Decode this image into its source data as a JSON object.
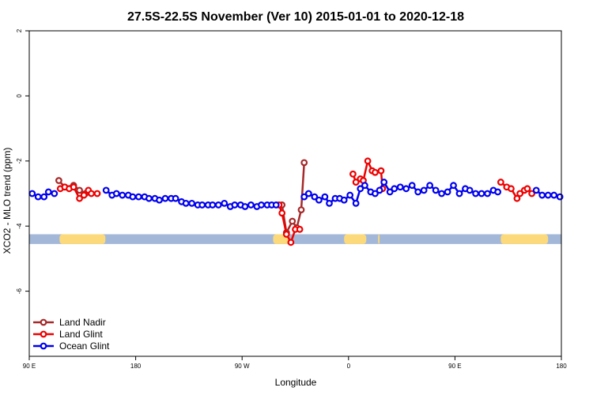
{
  "chart_data": {
    "type": "line",
    "title": "27.5S-22.5S November (Ver 10)   2015-01-01 to 2020-12-18",
    "xlabel": "Longitude",
    "ylabel": "XCO2 - MLO trend (ppm)",
    "xlim": [
      90,
      450
    ],
    "ylim": [
      -8,
      2
    ],
    "x_ticks": [
      90,
      162,
      234,
      306,
      378,
      450
    ],
    "x_tick_labels": [
      "90 E",
      "180",
      "90 W",
      "0",
      "90 E",
      "180"
    ],
    "y_ticks": [
      2,
      0,
      -2,
      -4,
      -6
    ],
    "y_tick_labels": [
      "2",
      "0",
      "-2",
      "-4",
      "-6"
    ],
    "grid": false,
    "legend_position": "bottom-left",
    "land_band": {
      "y_range": [
        -4.55,
        -4.25
      ],
      "ocean_color": "#a3b8d8",
      "land_color": "#fcd97a",
      "land_x_ranges": [
        [
          110.5,
          141.5
        ],
        [
          255,
          266
        ],
        [
          303,
          318
        ],
        [
          326,
          327
        ],
        [
          409,
          441
        ]
      ]
    },
    "series": [
      {
        "name": "Land Nadir",
        "color": "#a52a2a",
        "x": [
          110,
          114,
          120,
          124,
          128,
          261,
          264,
          268,
          271,
          274,
          276
        ],
        "y": [
          -2.6,
          -2.8,
          -2.75,
          -2.9,
          -3.0,
          -3.35,
          -4.2,
          -3.85,
          -4.05,
          -3.5,
          -2.05
        ]
      },
      {
        "name": "Land Glint",
        "color": "#ee0000",
        "x": [
          111,
          114,
          117,
          120,
          124,
          127,
          130,
          132,
          136,
          259,
          261,
          264,
          267,
          270,
          273,
          309,
          311,
          314,
          316,
          319,
          322,
          324,
          328,
          329,
          409,
          413,
          416,
          420,
          422,
          425,
          427,
          430
        ],
        "y": [
          -2.85,
          -2.8,
          -2.85,
          -2.8,
          -3.15,
          -3.05,
          -2.9,
          -3.0,
          -3.0,
          -3.35,
          -3.6,
          -4.25,
          -4.5,
          -4.1,
          -4.1,
          -2.4,
          -2.65,
          -2.55,
          -2.6,
          -2.0,
          -2.3,
          -2.35,
          -2.3,
          -2.85,
          -2.65,
          -2.8,
          -2.85,
          -3.15,
          -3.0,
          -2.9,
          -2.85,
          -3.0
        ]
      },
      {
        "name": "Ocean Glint",
        "color": "#0000ee",
        "x": [
          92,
          96,
          100,
          103,
          107,
          142,
          146,
          149,
          153,
          157,
          160,
          164,
          168,
          171,
          175,
          178,
          182,
          186,
          189,
          193,
          196,
          200,
          204,
          207,
          211,
          214,
          218,
          222,
          226,
          229,
          233,
          236,
          240,
          244,
          247,
          251,
          254,
          257,
          276,
          279,
          283,
          286,
          290,
          293,
          297,
          300,
          303,
          307,
          311,
          314,
          317,
          321,
          324,
          327,
          330,
          334,
          337,
          341,
          345,
          349,
          353,
          357,
          361,
          365,
          369,
          373,
          377,
          381,
          385,
          388,
          392,
          396,
          400,
          404,
          407,
          433,
          437,
          441,
          445,
          449
        ],
        "y": [
          -3.0,
          -3.1,
          -3.1,
          -2.95,
          -3.0,
          -2.9,
          -3.05,
          -3.0,
          -3.05,
          -3.05,
          -3.1,
          -3.1,
          -3.1,
          -3.15,
          -3.15,
          -3.2,
          -3.15,
          -3.15,
          -3.15,
          -3.25,
          -3.3,
          -3.3,
          -3.35,
          -3.35,
          -3.35,
          -3.35,
          -3.35,
          -3.3,
          -3.4,
          -3.35,
          -3.35,
          -3.4,
          -3.35,
          -3.4,
          -3.35,
          -3.35,
          -3.35,
          -3.35,
          -3.1,
          -3.0,
          -3.1,
          -3.2,
          -3.1,
          -3.3,
          -3.15,
          -3.15,
          -3.2,
          -3.05,
          -3.3,
          -2.85,
          -2.75,
          -2.95,
          -3.0,
          -2.9,
          -2.65,
          -2.95,
          -2.85,
          -2.8,
          -2.85,
          -2.75,
          -2.95,
          -2.9,
          -2.75,
          -2.9,
          -3.0,
          -2.95,
          -2.75,
          -3.0,
          -2.85,
          -2.9,
          -3.0,
          -3.0,
          -3.0,
          -2.9,
          -2.95,
          -2.9,
          -3.05,
          -3.05,
          -3.05,
          -3.1
        ]
      }
    ]
  }
}
